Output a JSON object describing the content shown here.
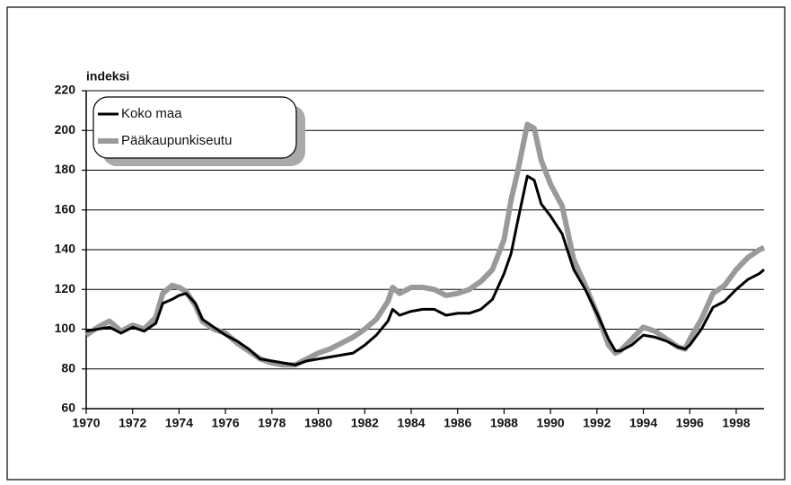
{
  "chart_data": {
    "type": "line",
    "y_label": "indeksi",
    "x": [
      1970,
      1970.5,
      1971,
      1971.5,
      1972,
      1972.5,
      1973,
      1973.3,
      1973.7,
      1974,
      1974.3,
      1974.7,
      1975,
      1975.5,
      1976,
      1976.5,
      1977,
      1977.5,
      1978,
      1978.5,
      1979,
      1979.5,
      1980,
      1980.5,
      1981,
      1981.5,
      1982,
      1982.5,
      1983,
      1983.2,
      1983.5,
      1984,
      1984.5,
      1985,
      1985.5,
      1986,
      1986.5,
      1987,
      1987.5,
      1988,
      1988.3,
      1988.6,
      1989,
      1989.3,
      1989.6,
      1990,
      1990.5,
      1991,
      1991.5,
      1992,
      1992.5,
      1992.8,
      1993,
      1993.5,
      1994,
      1994.5,
      1995,
      1995.5,
      1995.8,
      1996,
      1996.5,
      1997,
      1997.5,
      1998,
      1998.5,
      1999,
      1999.2
    ],
    "series": [
      {
        "name": "Koko maa",
        "color": "#000000",
        "values": [
          99,
          100,
          101,
          98,
          101,
          99,
          103,
          113,
          115,
          117,
          118,
          113,
          105,
          101,
          97,
          94,
          90,
          85,
          84,
          83,
          82,
          84,
          85,
          86,
          87,
          88,
          92,
          97,
          104,
          110,
          107,
          109,
          110,
          110,
          107,
          108,
          108,
          110,
          115,
          128,
          138,
          155,
          177,
          175,
          163,
          157,
          148,
          130,
          120,
          108,
          95,
          89,
          89,
          92,
          97,
          96,
          94,
          91,
          90,
          92,
          100,
          111,
          114,
          120,
          125,
          128,
          130
        ]
      },
      {
        "name": "Pääkaupunkiseutu",
        "color": "#9a9a9a",
        "values": [
          97,
          101,
          104,
          99,
          102,
          100,
          106,
          118,
          122,
          121,
          119,
          112,
          104,
          100,
          98,
          93,
          89,
          85,
          83,
          82,
          82,
          85,
          88,
          90,
          93,
          96,
          100,
          105,
          114,
          121,
          118,
          121,
          121,
          120,
          117,
          118,
          120,
          124,
          130,
          145,
          165,
          180,
          203,
          201,
          185,
          173,
          162,
          135,
          122,
          108,
          92,
          88,
          89,
          95,
          101,
          99,
          95,
          91,
          90,
          95,
          105,
          118,
          122,
          130,
          136,
          140,
          141
        ]
      }
    ],
    "xlim": [
      1970,
      1999.2
    ],
    "xticks": [
      1970,
      1972,
      1974,
      1976,
      1978,
      1980,
      1982,
      1984,
      1986,
      1988,
      1990,
      1992,
      1994,
      1996,
      1998
    ],
    "ylim": [
      60,
      220
    ],
    "yticks": [
      60,
      80,
      100,
      120,
      140,
      160,
      180,
      200,
      220
    ],
    "grid": true,
    "legend": "upper left"
  }
}
